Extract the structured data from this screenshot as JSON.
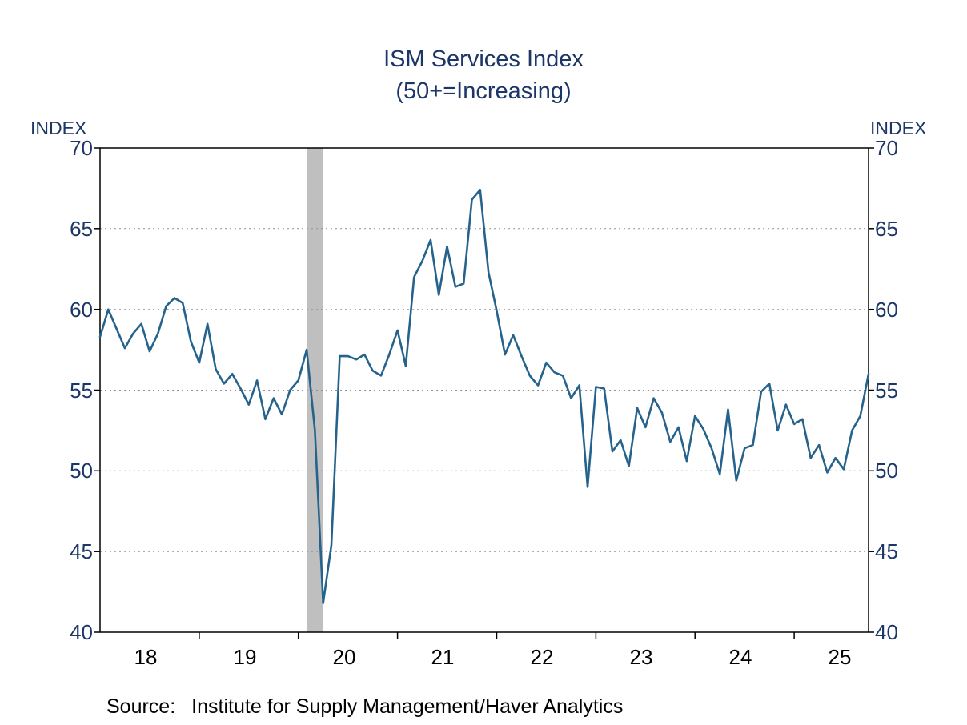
{
  "title": {
    "line1": "ISM Services Index",
    "line2": "(50+=Increasing)"
  },
  "axis_labels": {
    "left_unit": "INDEX",
    "right_unit": "INDEX"
  },
  "source": {
    "label": "Source:",
    "text": "Institute for Supply Management/Haver Analytics"
  },
  "colors": {
    "title_text": "#1c3667",
    "axis_text": "#1c3667",
    "x_axis_text": "#000000",
    "series_line": "#25638c",
    "recession_band": "#bfbfbf",
    "gridline": "#8f9399",
    "frame": "#000000",
    "background": "#ffffff"
  },
  "chart_data": {
    "type": "line",
    "title": "ISM Services Index",
    "subtitle": "(50+=Increasing)",
    "ylabel": "INDEX",
    "ylim": [
      40,
      70
    ],
    "yticks": [
      40,
      45,
      50,
      55,
      60,
      65,
      70
    ],
    "grid": "dotted-horizontal",
    "legend": "none",
    "x_start": "2018-01",
    "x_end": "2025-10",
    "x_year_labels": [
      "18",
      "19",
      "20",
      "21",
      "22",
      "23",
      "24",
      "25"
    ],
    "recession_band": {
      "start": "2020-02",
      "end": "2020-04"
    },
    "series": [
      {
        "name": "ISM Services Index",
        "frequency": "monthly",
        "values": [
          58.3,
          60.0,
          58.8,
          57.6,
          58.5,
          59.1,
          57.4,
          58.5,
          60.2,
          60.7,
          60.4,
          58.0,
          56.7,
          59.1,
          56.3,
          55.4,
          56.0,
          55.1,
          54.1,
          55.6,
          53.2,
          54.5,
          53.5,
          55.0,
          55.6,
          57.5,
          52.5,
          41.8,
          45.4,
          57.1,
          57.1,
          56.9,
          57.2,
          56.2,
          55.9,
          57.2,
          58.7,
          56.5,
          62.0,
          63.0,
          64.3,
          60.9,
          63.9,
          61.4,
          61.6,
          66.8,
          67.4,
          62.3,
          59.9,
          57.2,
          58.4,
          57.1,
          55.9,
          55.3,
          56.7,
          56.1,
          55.9,
          54.5,
          55.3,
          49.0,
          55.2,
          55.1,
          51.2,
          51.9,
          50.3,
          53.9,
          52.7,
          54.5,
          53.6,
          51.8,
          52.7,
          50.6,
          53.4,
          52.6,
          51.4,
          49.8,
          53.8,
          49.4,
          51.4,
          51.6,
          54.9,
          55.4,
          52.5,
          54.1,
          52.9,
          53.2,
          50.8,
          51.6,
          49.9,
          50.8,
          50.1,
          52.5,
          53.4,
          56.0
        ]
      }
    ]
  }
}
